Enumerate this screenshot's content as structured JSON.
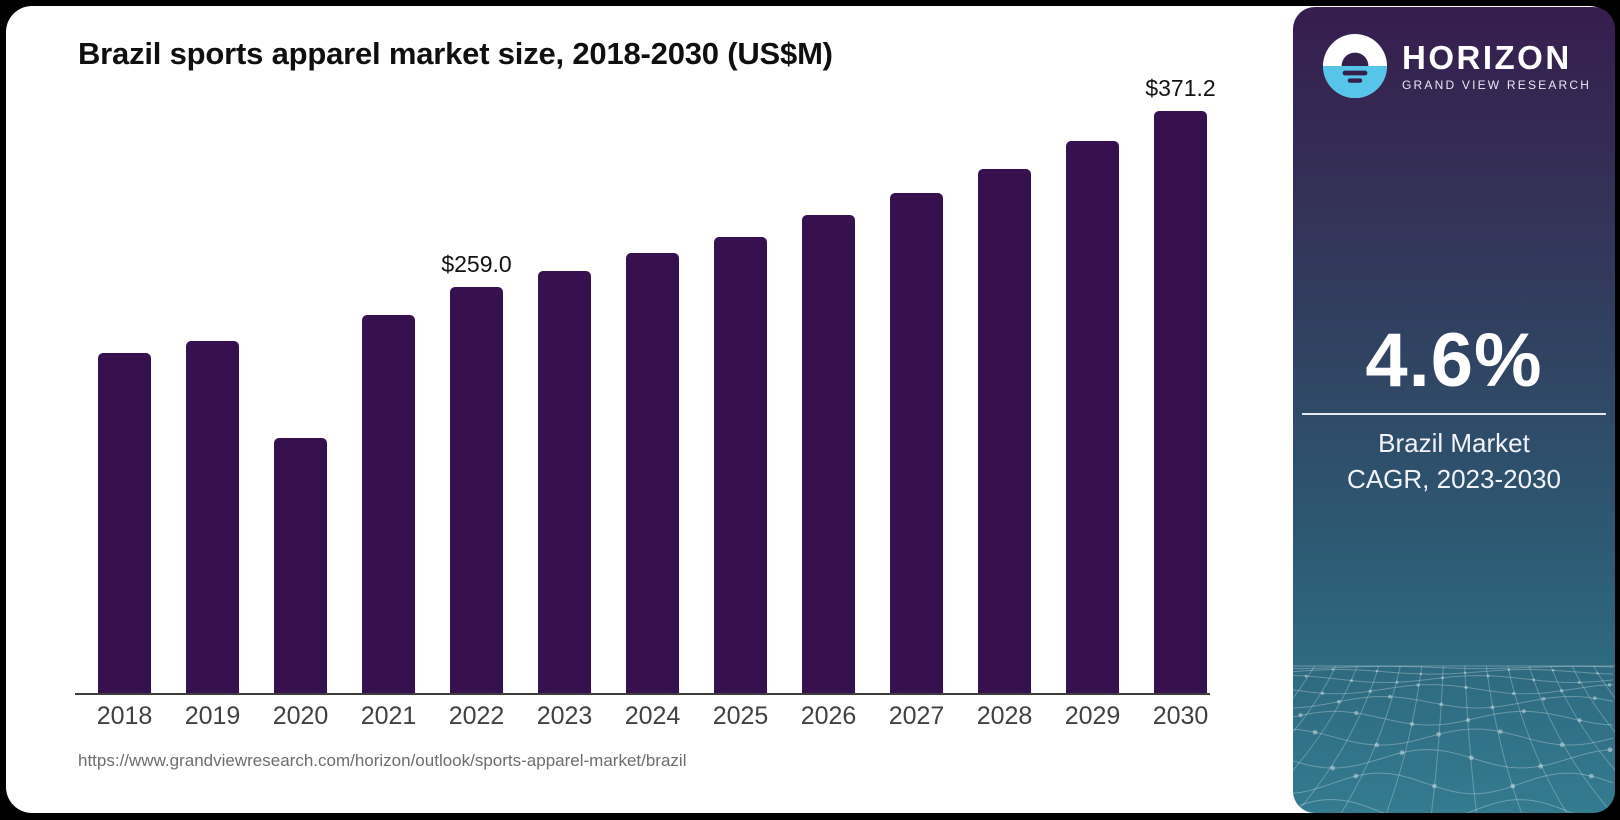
{
  "source": {
    "url": "https://www.grandviewresearch.com/horizon/outlook/sports-apparel-market/brazil"
  },
  "chart_data": {
    "type": "bar",
    "title": "Brazil sports apparel market size, 2018-2030 (US$M)",
    "categories": [
      "2018",
      "2019",
      "2020",
      "2021",
      "2022",
      "2023",
      "2024",
      "2025",
      "2026",
      "2027",
      "2028",
      "2029",
      "2030"
    ],
    "values": [
      217,
      224.5,
      163,
      241,
      259.0,
      269,
      281,
      291,
      305,
      319,
      334.5,
      352,
      371.2
    ],
    "annotations": {
      "2022": "$259.0",
      "2030": "$371.2"
    },
    "xlabel": "",
    "ylabel": "",
    "ylim": [
      0,
      375
    ],
    "grid": false,
    "legend": "none",
    "bar_color": "#37114d"
  },
  "side_panel": {
    "brand": "HORIZON",
    "subbrand": "GRAND VIEW RESEARCH",
    "cagr_value": "4.6%",
    "cagr_line1": "Brazil Market",
    "cagr_line2": "CAGR, 2023-2030",
    "colors": {
      "panel_top": "#361d4e",
      "panel_bottom": "#347b90",
      "logo_blue": "#57c4e9",
      "logo_dark": "#33204b",
      "text": "#ffffff"
    }
  }
}
